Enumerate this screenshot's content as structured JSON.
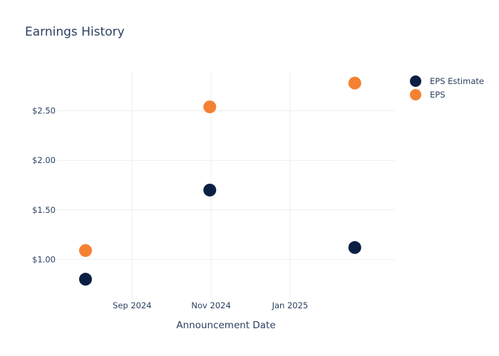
{
  "chart_data": {
    "type": "scatter",
    "title": "Earnings History",
    "xlabel": "Announcement Date",
    "ylabel": "",
    "x_axis": {
      "type": "date",
      "range": [
        "2024-07-05",
        "2025-03-23"
      ],
      "ticks": [
        {
          "date": "2024-09-01",
          "label": "Sep 2024"
        },
        {
          "date": "2024-11-01",
          "label": "Nov 2024"
        },
        {
          "date": "2025-01-01",
          "label": "Jan 2025"
        }
      ]
    },
    "y_axis": {
      "range": [
        0.6,
        2.9
      ],
      "ticks": [
        {
          "value": 1.0,
          "label": "$1.00"
        },
        {
          "value": 1.5,
          "label": "$1.50"
        },
        {
          "value": 2.0,
          "label": "$2.00"
        },
        {
          "value": 2.5,
          "label": "$2.50"
        }
      ]
    },
    "grid": true,
    "legend_position": "top-right",
    "series": [
      {
        "name": "EPS Estimate",
        "color": "#0b1f44",
        "points": [
          {
            "x": "2024-07-27",
            "y": 0.8
          },
          {
            "x": "2024-10-31",
            "y": 1.7
          },
          {
            "x": "2025-02-20",
            "y": 1.12
          }
        ]
      },
      {
        "name": "EPS",
        "color": "#f58132",
        "points": [
          {
            "x": "2024-07-27",
            "y": 1.09
          },
          {
            "x": "2024-10-31",
            "y": 2.54
          },
          {
            "x": "2025-02-20",
            "y": 2.78
          }
        ]
      }
    ]
  }
}
